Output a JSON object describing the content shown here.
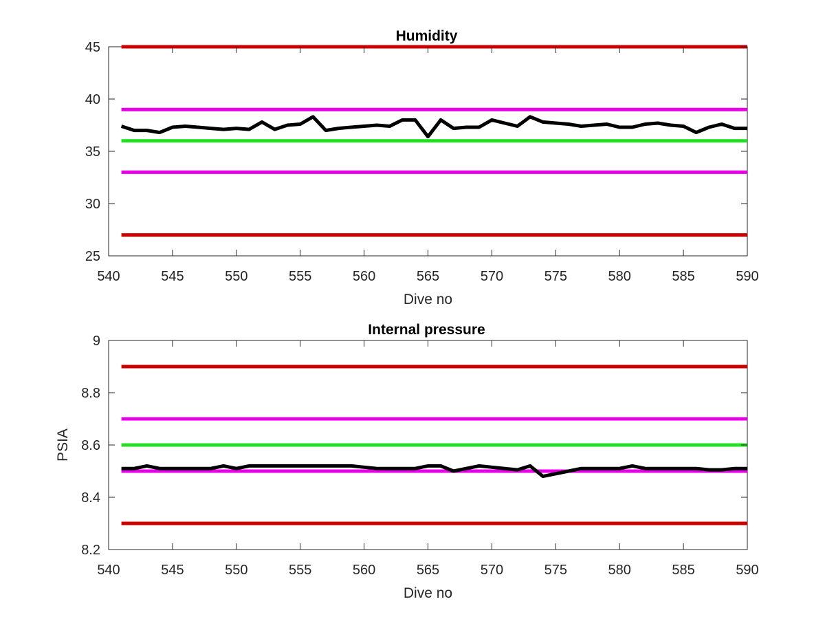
{
  "chart_data": [
    {
      "type": "line",
      "title": "Humidity",
      "xlabel": "Dive no",
      "ylabel": "",
      "xlim": [
        540,
        590
      ],
      "ylim": [
        25,
        45
      ],
      "xticks": [
        540,
        545,
        550,
        555,
        560,
        565,
        570,
        575,
        580,
        585,
        590
      ],
      "yticks": [
        25,
        30,
        35,
        40,
        45
      ],
      "grid": false,
      "series": [
        {
          "color": "#cc0000",
          "x": [
            541,
            590
          ],
          "y": [
            45,
            45
          ]
        },
        {
          "color": "#e600e6",
          "x": [
            541,
            590
          ],
          "y": [
            39,
            39
          ]
        },
        {
          "color": "#22dd22",
          "x": [
            541,
            590
          ],
          "y": [
            36,
            36
          ]
        },
        {
          "color": "#e600e6",
          "x": [
            541,
            590
          ],
          "y": [
            33,
            33
          ]
        },
        {
          "color": "#cc0000",
          "x": [
            541,
            590
          ],
          "y": [
            27,
            27
          ]
        },
        {
          "color": "#000000",
          "x": [
            541,
            542,
            543,
            544,
            545,
            546,
            547,
            548,
            549,
            550,
            551,
            552,
            553,
            554,
            555,
            556,
            557,
            558,
            559,
            560,
            561,
            562,
            563,
            564,
            565,
            566,
            567,
            568,
            569,
            570,
            571,
            572,
            573,
            574,
            575,
            576,
            577,
            578,
            579,
            580,
            581,
            582,
            583,
            584,
            585,
            586,
            587,
            588,
            589,
            590
          ],
          "y": [
            37.4,
            37.0,
            37.0,
            36.8,
            37.3,
            37.4,
            37.3,
            37.2,
            37.1,
            37.2,
            37.1,
            37.8,
            37.1,
            37.5,
            37.6,
            38.3,
            37.0,
            37.2,
            37.3,
            37.4,
            37.5,
            37.4,
            38.0,
            38.0,
            36.4,
            38.0,
            37.2,
            37.3,
            37.3,
            38.0,
            37.7,
            37.4,
            38.3,
            37.8,
            37.7,
            37.6,
            37.4,
            37.5,
            37.6,
            37.3,
            37.3,
            37.6,
            37.7,
            37.5,
            37.4,
            36.8,
            37.3,
            37.6,
            37.2,
            37.2
          ]
        }
      ]
    },
    {
      "type": "line",
      "title": "Internal pressure",
      "xlabel": "Dive no",
      "ylabel": "PSIA",
      "xlim": [
        540,
        590
      ],
      "ylim": [
        8.2,
        9.0
      ],
      "xticks": [
        540,
        545,
        550,
        555,
        560,
        565,
        570,
        575,
        580,
        585,
        590
      ],
      "yticks": [
        8.2,
        8.4,
        8.6,
        8.8,
        9
      ],
      "grid": false,
      "series": [
        {
          "color": "#cc0000",
          "x": [
            541,
            590
          ],
          "y": [
            8.9,
            8.9
          ]
        },
        {
          "color": "#e600e6",
          "x": [
            541,
            590
          ],
          "y": [
            8.7,
            8.7
          ]
        },
        {
          "color": "#22dd22",
          "x": [
            541,
            590
          ],
          "y": [
            8.6,
            8.6
          ]
        },
        {
          "color": "#e600e6",
          "x": [
            541,
            590
          ],
          "y": [
            8.5,
            8.5
          ]
        },
        {
          "color": "#cc0000",
          "x": [
            541,
            590
          ],
          "y": [
            8.3,
            8.3
          ]
        },
        {
          "color": "#000000",
          "x": [
            541,
            542,
            543,
            544,
            545,
            546,
            547,
            548,
            549,
            550,
            551,
            552,
            553,
            554,
            555,
            556,
            557,
            558,
            559,
            560,
            561,
            562,
            563,
            564,
            565,
            566,
            567,
            568,
            569,
            570,
            571,
            572,
            573,
            574,
            575,
            576,
            577,
            578,
            579,
            580,
            581,
            582,
            583,
            584,
            585,
            586,
            587,
            588,
            589,
            590
          ],
          "y": [
            8.51,
            8.51,
            8.52,
            8.51,
            8.51,
            8.51,
            8.51,
            8.51,
            8.52,
            8.51,
            8.52,
            8.52,
            8.52,
            8.52,
            8.52,
            8.52,
            8.52,
            8.52,
            8.52,
            8.515,
            8.51,
            8.51,
            8.51,
            8.51,
            8.52,
            8.52,
            8.5,
            8.51,
            8.52,
            8.515,
            8.51,
            8.505,
            8.52,
            8.48,
            8.49,
            8.5,
            8.51,
            8.51,
            8.51,
            8.51,
            8.52,
            8.51,
            8.51,
            8.51,
            8.51,
            8.51,
            8.505,
            8.505,
            8.51,
            8.51
          ]
        }
      ]
    }
  ]
}
